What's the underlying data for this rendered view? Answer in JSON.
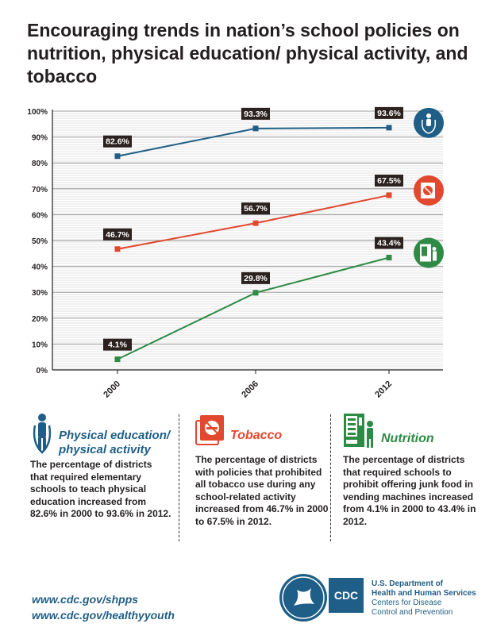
{
  "title": "Encouraging trends in nation’s school policies on nutrition, physical education/ physical activity, and tobacco",
  "chart_data": {
    "type": "line",
    "x": [
      "2000",
      "2006",
      "2012"
    ],
    "ylim": [
      0,
      100
    ],
    "yticks": [
      "0%",
      "10%",
      "20%",
      "30%",
      "40%",
      "50%",
      "60%",
      "70%",
      "80%",
      "90%",
      "100%"
    ],
    "series": [
      {
        "values": [
          82.6,
          93.3,
          93.6
        ],
        "labels": [
          "82.6%",
          "93.3%",
          "93.6%"
        ],
        "color": "#1f5e86",
        "icon": "jump-rope-icon"
      },
      {
        "values": [
          46.7,
          56.7,
          67.5
        ],
        "labels": [
          "46.7%",
          "56.7%",
          "67.5%"
        ],
        "color": "#e2482d",
        "icon": "no-smoking-icon"
      },
      {
        "values": [
          4.1,
          29.8,
          43.4
        ],
        "labels": [
          "4.1%",
          "29.8%",
          "43.4%"
        ],
        "color": "#2e8b45",
        "icon": "vending-machine-icon"
      }
    ]
  },
  "panels": [
    {
      "title_line1": "Physical education/",
      "title_line2": "physical activity",
      "body": "The percentage of districts that required elementary schools to teach physical education increased from 82.6% in 2000 to 93.6% in 2012.",
      "color": "#1f5e86",
      "icon": "jump-rope-icon"
    },
    {
      "title": "Tobacco",
      "body": "The percentage of districts with policies that prohibited all tobacco use during any school-related activity increased from 46.7% in 2000 to 67.5% in 2012.",
      "color": "#e2482d",
      "icon": "no-smoking-icon"
    },
    {
      "title": "Nutrition",
      "body": "The percentage of districts that required schools to prohibit offering junk food in vending machines increased from 4.1% in 2000 to 43.4% in 2012.",
      "color": "#2e8b45",
      "icon": "vending-machine-icon"
    }
  ],
  "links": [
    "www.cdc.gov/shpps",
    "www.cdc.gov/healthyyouth"
  ],
  "footer": {
    "cdc_logo_text": "CDC",
    "hhs_line1": "U.S. Department of",
    "hhs_line2": "Health and Human Services",
    "hhs_line3": "Centers for Disease",
    "hhs_line4": "Control and Prevention"
  }
}
